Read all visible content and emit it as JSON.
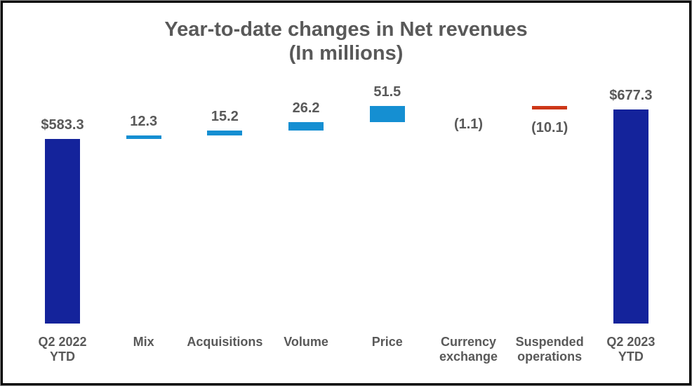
{
  "title": {
    "line1": "Year-to-date changes in Net revenues",
    "line2": "(In millions)"
  },
  "colors": {
    "total_bar": "#14239B",
    "increase_bar": "#158FD2",
    "decrease_bar": "#CD3718",
    "text": "#595959",
    "background": "#FFFFFF",
    "frame": "#000000"
  },
  "chart_data": {
    "type": "bar",
    "subtype": "waterfall",
    "title": "Year-to-date changes in Net revenues (In millions)",
    "categories": [
      "Q2 2022 YTD",
      "Mix",
      "Acquisitions",
      "Volume",
      "Price",
      "Currency exchange",
      "Suspended operations",
      "Q2 2023 YTD"
    ],
    "category_lines": [
      [
        "Q2 2022",
        "YTD"
      ],
      [
        "Mix"
      ],
      [
        "Acquisitions"
      ],
      [
        "Volume"
      ],
      [
        "Price"
      ],
      [
        "Currency",
        "exchange"
      ],
      [
        "Suspended",
        "operations"
      ],
      [
        "Q2 2023",
        "YTD"
      ]
    ],
    "values": [
      583.3,
      12.3,
      15.2,
      26.2,
      51.5,
      -1.1,
      -10.1,
      677.3
    ],
    "value_labels": [
      "$583.3",
      "12.3",
      "15.2",
      "26.2",
      "51.5",
      "(1.1)",
      "(10.1)",
      "$677.3"
    ],
    "roles": [
      "total",
      "increase",
      "increase",
      "increase",
      "increase",
      "decrease",
      "decrease",
      "total"
    ],
    "cumulative": [
      583.3,
      595.6,
      610.8,
      637.0,
      688.5,
      687.4,
      677.3,
      677.3
    ],
    "ylim": [
      0,
      700
    ],
    "grid": false,
    "legend": false,
    "xlabel": "",
    "ylabel": ""
  }
}
